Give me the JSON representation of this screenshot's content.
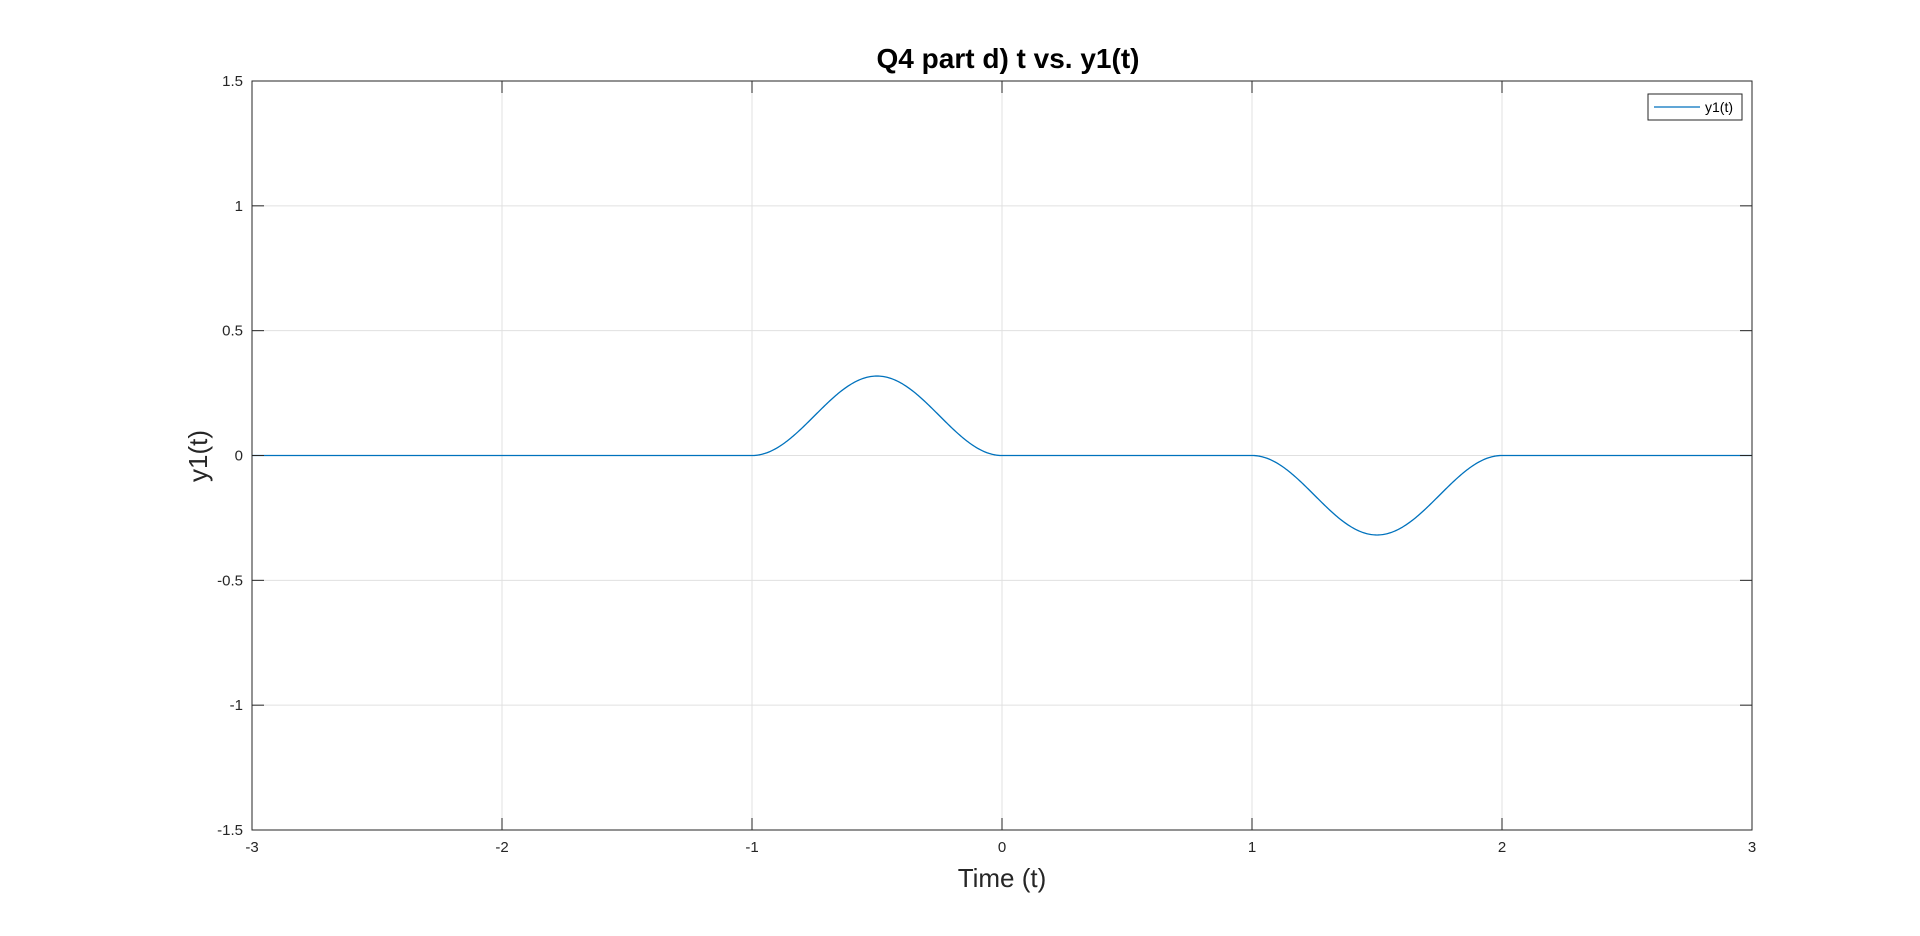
{
  "chart_data": {
    "type": "line",
    "title": "Q4 part d) t vs. y1(t)",
    "xlabel": "Time (t)",
    "ylabel": "y1(t)",
    "xlim": [
      -3,
      3
    ],
    "ylim": [
      -1.5,
      1.5
    ],
    "xticks": [
      -3,
      -2,
      -1,
      0,
      1,
      2,
      3
    ],
    "yticks": [
      -1.5,
      -1,
      -0.5,
      0,
      0.5,
      1,
      1.5
    ],
    "xtick_labels": [
      "-3",
      "-2",
      "-1",
      "0",
      "1",
      "2",
      "3"
    ],
    "ytick_labels": [
      "-1.5",
      "-1",
      "-0.5",
      "0",
      "0.5",
      "1",
      "1.5"
    ],
    "grid": true,
    "legend_position": "top-right",
    "series": [
      {
        "name": "y1(t)",
        "color": "#0072BD",
        "x": [
          -3,
          -2,
          -1,
          -0.95,
          -0.9,
          -0.85,
          -0.8,
          -0.75,
          -0.7,
          -0.65,
          -0.6,
          -0.55,
          -0.5,
          -0.45,
          -0.4,
          -0.35,
          -0.3,
          -0.25,
          -0.2,
          -0.15,
          -0.1,
          -0.05,
          0,
          0.5,
          1,
          1.05,
          1.1,
          1.15,
          1.2,
          1.25,
          1.3,
          1.35,
          1.4,
          1.45,
          1.5,
          1.55,
          1.6,
          1.65,
          1.7,
          1.75,
          1.8,
          1.85,
          1.9,
          1.95,
          2,
          2.5,
          3
        ],
        "y": [
          0,
          0,
          0,
          0.0019,
          0.0076,
          0.0167,
          0.0287,
          0.043,
          0.0588,
          0.0753,
          0.0917,
          0.1069,
          0.1592,
          0.2115,
          0.2589,
          0.2961,
          0.3148,
          0.3148,
          0.2961,
          0.2589,
          0.2115,
          0.1592,
          0,
          0,
          0,
          -0.0019,
          -0.0076,
          -0.0167,
          -0.0287,
          -0.043,
          -0.0588,
          -0.0753,
          -0.0917,
          -0.1069,
          -0.3183,
          -0.1069,
          -0.0917,
          -0.0753,
          -0.0588,
          -0.043,
          -0.0287,
          -0.0167,
          -0.0076,
          -0.0019,
          0,
          0,
          0
        ]
      }
    ]
  }
}
